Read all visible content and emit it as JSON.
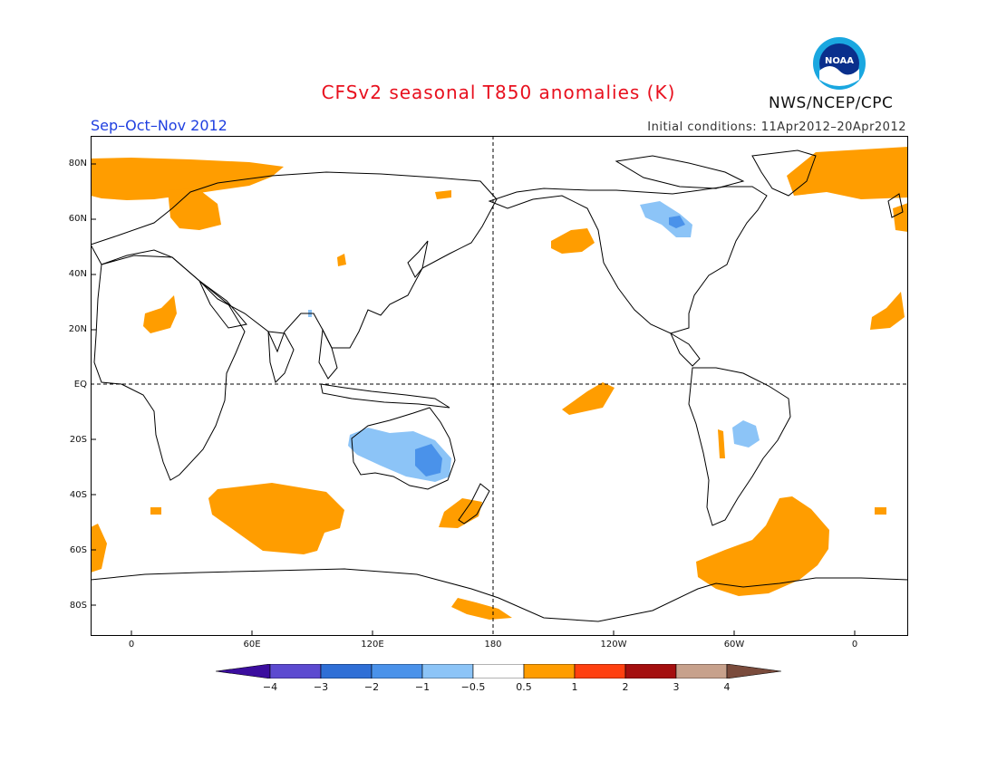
{
  "header": {
    "title": "CFSv2 seasonal T850 anomalies (K)",
    "season": "Sep–Oct–Nov 2012",
    "initial_conditions": "Initial conditions: 11Apr2012–20Apr2012",
    "agency": "NWS/NCEP/CPC",
    "logo_icon": "noaa-logo-icon",
    "logo_text": "NOAA"
  },
  "map": {
    "lat_labels": [
      "80N",
      "60N",
      "40N",
      "20N",
      "EQ",
      "20S",
      "40S",
      "60S",
      "80S"
    ],
    "lon_labels": [
      "0",
      "60E",
      "120E",
      "180",
      "120W",
      "60W",
      "0"
    ]
  },
  "colorbar": {
    "tick_labels": [
      "−4",
      "−3",
      "−2",
      "−1",
      "−0.5",
      "0.5",
      "1",
      "2",
      "3",
      "4"
    ],
    "colors": [
      "#3b0d9e",
      "#5c4ad0",
      "#2f6fd6",
      "#4a92ea",
      "#8cc4f7",
      "#ffffff",
      "#ff9d00",
      "#ff4010",
      "#a40f0f",
      "#c7a18c",
      "#7a4b3c"
    ]
  }
}
